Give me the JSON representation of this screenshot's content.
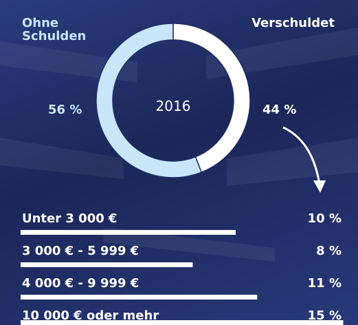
{
  "chart_data": [
    {
      "type": "pie",
      "center_label": "2016",
      "categories": [
        "Ohne Schulden",
        "Verschuldet"
      ],
      "values": [
        56,
        44
      ],
      "value_labels": [
        "56 %",
        "44 %"
      ],
      "colors": [
        "#c8e6f8",
        "#ffffff"
      ]
    },
    {
      "type": "bar",
      "categories": [
        "Unter 3 000 €",
        "3 000 €  - 5 999 €",
        "4 000 € - 9 999 €",
        "10 000 € oder mehr"
      ],
      "values": [
        10,
        8,
        11,
        15
      ],
      "value_labels": [
        "10 %",
        "8 %",
        "11 %",
        "15 %"
      ],
      "color": "#ffffff"
    }
  ]
}
